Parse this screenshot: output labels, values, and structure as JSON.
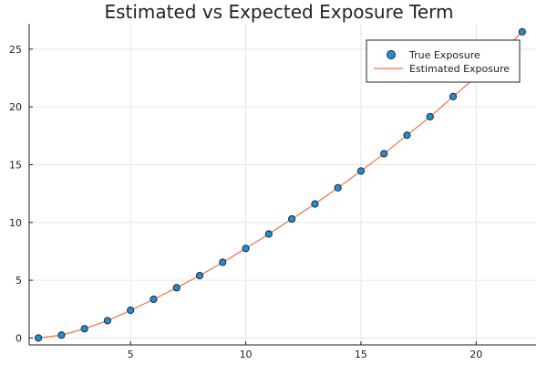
{
  "chart_data": {
    "type": "scatter+line",
    "title": "Estimated vs Expected Exposure Term",
    "xlabel": "",
    "ylabel": "",
    "xlim": [
      0.6,
      22.6
    ],
    "ylim": [
      -0.6,
      27.2
    ],
    "x_ticks": [
      5,
      10,
      15,
      20
    ],
    "y_ticks": [
      0,
      5,
      10,
      15,
      20,
      25
    ],
    "grid": true,
    "legend_position": "top-right",
    "series": [
      {
        "name": "True Exposure",
        "kind": "scatter",
        "color": "#1f8ed6",
        "x": [
          1,
          2,
          3,
          4,
          5,
          6,
          7,
          8,
          9,
          10,
          11,
          12,
          13,
          14,
          15,
          16,
          17,
          18,
          19,
          20,
          21,
          22
        ],
        "y": [
          0.0,
          0.25,
          0.8,
          1.5,
          2.4,
          3.35,
          4.35,
          5.4,
          6.55,
          7.75,
          9.0,
          10.3,
          11.6,
          13.0,
          14.45,
          15.95,
          17.55,
          19.15,
          20.9,
          22.6,
          24.5,
          26.5
        ]
      },
      {
        "name": "Estimated Exposure",
        "kind": "line",
        "color": "#e8734a",
        "x": [
          1,
          2,
          3,
          4,
          5,
          6,
          7,
          8,
          9,
          10,
          11,
          12,
          13,
          14,
          15,
          16,
          17,
          18,
          19,
          20,
          21,
          22
        ],
        "y": [
          0.0,
          0.25,
          0.8,
          1.5,
          2.4,
          3.35,
          4.35,
          5.4,
          6.55,
          7.75,
          9.0,
          10.3,
          11.6,
          13.0,
          14.45,
          15.95,
          17.55,
          19.15,
          20.9,
          22.6,
          24.5,
          26.5
        ]
      }
    ]
  }
}
